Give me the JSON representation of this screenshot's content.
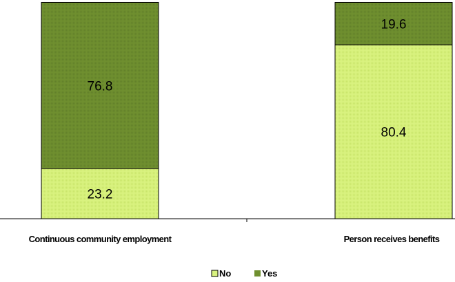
{
  "chart_data": {
    "type": "bar",
    "stacked": true,
    "percent_stacked": true,
    "categories": [
      "Continuous community employment",
      "Person receives benefits"
    ],
    "series": [
      {
        "name": "No",
        "values": [
          23.2,
          80.4
        ],
        "color": "#d9f27f"
      },
      {
        "name": "Yes",
        "values": [
          76.8,
          19.6
        ],
        "color": "#6f8f2f"
      }
    ],
    "ylim": [
      0,
      100
    ],
    "title": "",
    "xlabel": "",
    "ylabel": "",
    "grid": false,
    "legend_position": "bottom",
    "data_labels": true
  }
}
